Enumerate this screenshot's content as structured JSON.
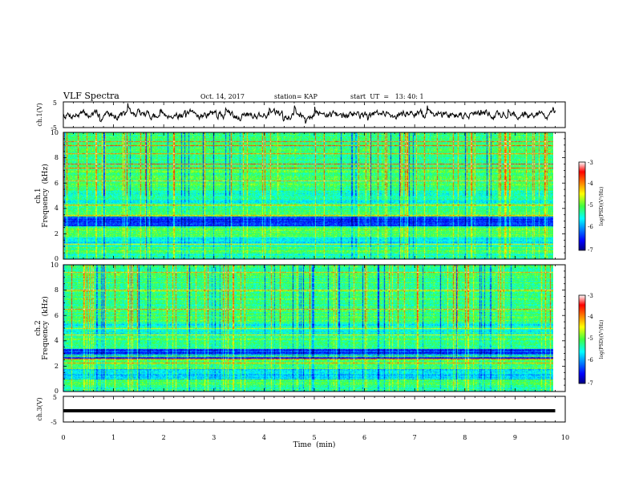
{
  "header": {
    "title": "VLF Spectra",
    "date": "Oct. 14, 2017",
    "station": "station= KAP",
    "start_ut": "start  UT  =   13: 40: 1"
  },
  "chart_data": {
    "type": "heatmap",
    "xlabel": "Time  (min)",
    "xlim": [
      0,
      10
    ],
    "x_ticks": [
      "0",
      "1",
      "2",
      "3",
      "4",
      "5",
      "6",
      "7",
      "8",
      "9",
      "10"
    ],
    "panels": [
      {
        "id": "ch1-waveform",
        "type": "line",
        "ylabel": "ch.1(V)",
        "ylim": [
          -5,
          5
        ],
        "y_ticks": [
          "5",
          "-5"
        ],
        "seed": 7,
        "x_end": 9.8
      },
      {
        "id": "ch1-spectrogram",
        "type": "heatmap",
        "ylabel_lines": [
          "ch.1",
          "Frequency  (kHz)"
        ],
        "ylim": [
          0,
          10
        ],
        "y_ticks": [
          "0",
          "2",
          "4",
          "6",
          "8",
          "10"
        ],
        "seed": 11,
        "x_end": 9.8,
        "colorbar": {
          "label": "log(PSD)(V²/Hz)",
          "range": [
            -7,
            -3
          ],
          "ticks": [
            "-3",
            "-4",
            "-5",
            "-6",
            "-7"
          ]
        }
      },
      {
        "id": "ch2-spectrogram",
        "type": "heatmap",
        "ylabel_lines": [
          "ch.2",
          "Frequency  (kHz)"
        ],
        "ylim": [
          0,
          10
        ],
        "y_ticks": [
          "0",
          "2",
          "4",
          "6",
          "8",
          "10"
        ],
        "seed": 23,
        "x_end": 9.8,
        "colorbar": {
          "label": "log(PSD)(V²/Hz)",
          "range": [
            -7,
            -3
          ],
          "ticks": [
            "-3",
            "-4",
            "-5",
            "-6",
            "-7"
          ]
        }
      },
      {
        "id": "ch3-waveform",
        "type": "line",
        "ylabel": "ch.3(V)",
        "ylim": [
          -5,
          5
        ],
        "y_ticks": [
          "5",
          "-5"
        ],
        "constant_value": 0,
        "x_end": 9.8
      }
    ]
  }
}
